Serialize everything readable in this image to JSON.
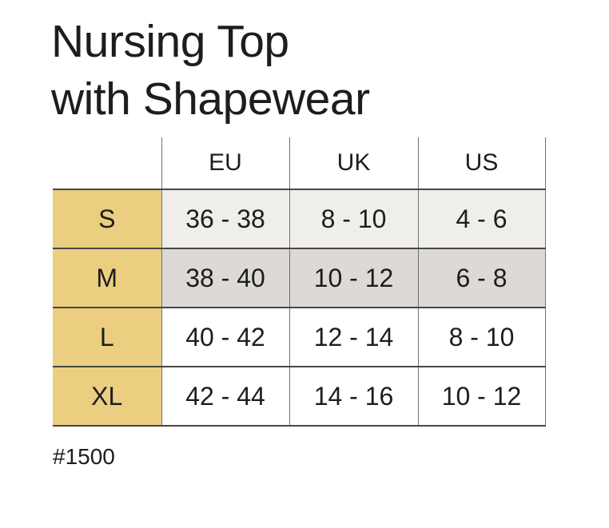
{
  "title": {
    "line1": "Nursing Top",
    "line2": "with Shapewear"
  },
  "product_code": "#1500",
  "size_table": {
    "column_headers": [
      "EU",
      "UK",
      "US"
    ],
    "rows": [
      {
        "size": "S",
        "eu": "36 - 38",
        "uk": "8 - 10",
        "us": "4 - 6"
      },
      {
        "size": "M",
        "eu": "38 - 40",
        "uk": "10 - 12",
        "us": "6 - 8"
      },
      {
        "size": "L",
        "eu": "40 - 42",
        "uk": "12 - 14",
        "us": "8 - 10"
      },
      {
        "size": "XL",
        "eu": "42 - 44",
        "uk": "14 - 16",
        "us": "10 - 12"
      }
    ]
  },
  "colors": {
    "size_column_bg": "#ecce80",
    "row_s_bg": "#f0eeeb",
    "row_m_bg": "#dcd9d6",
    "row_l_bg": "#ffffff",
    "row_xl_bg": "#ffffff",
    "header_bg": "#ffffff",
    "border_horizontal": "#474747",
    "border_vertical": "#707070",
    "text": "#1d1d1d",
    "background": "#ffffff"
  }
}
